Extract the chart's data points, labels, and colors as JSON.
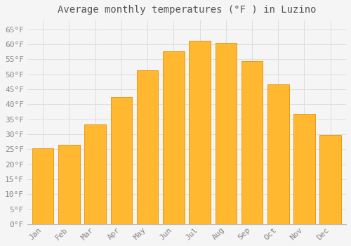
{
  "title": "Average monthly temperatures (°F ) in Luzino",
  "months": [
    "Jan",
    "Feb",
    "Mar",
    "Apr",
    "May",
    "Jun",
    "Jul",
    "Aug",
    "Sep",
    "Oct",
    "Nov",
    "Dec"
  ],
  "values": [
    25.2,
    26.6,
    33.4,
    42.4,
    51.3,
    57.7,
    61.2,
    60.6,
    54.3,
    46.6,
    36.7,
    29.7
  ],
  "bar_color_top": "#FFA500",
  "bar_color": "#FFB830",
  "bar_edge_color": "#E89000",
  "background_color": "#F5F5F5",
  "grid_color": "#DDDDDD",
  "ytick_labels": [
    "0°F",
    "5°F",
    "10°F",
    "15°F",
    "20°F",
    "25°F",
    "30°F",
    "35°F",
    "40°F",
    "45°F",
    "50°F",
    "55°F",
    "60°F",
    "65°F"
  ],
  "ytick_values": [
    0,
    5,
    10,
    15,
    20,
    25,
    30,
    35,
    40,
    45,
    50,
    55,
    60,
    65
  ],
  "ylim": [
    0,
    68
  ],
  "title_fontsize": 10,
  "tick_fontsize": 8,
  "tick_color": "#888888",
  "spine_color": "#BBBBBB",
  "bar_width": 0.82
}
